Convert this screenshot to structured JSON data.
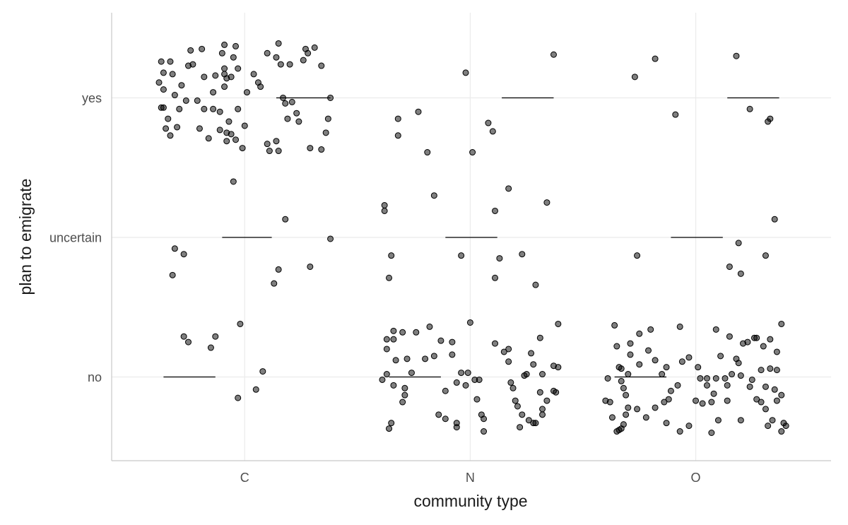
{
  "chart_data": {
    "type": "scatter",
    "x_label": "community type",
    "y_label": "plan to emigrate",
    "xlim": [
      0.41,
      3.6
    ],
    "ylim": [
      0.4,
      3.61
    ],
    "xticks": [
      {
        "value": 1,
        "label": "C"
      },
      {
        "value": 2,
        "label": "N"
      },
      {
        "value": 3,
        "label": "O"
      }
    ],
    "yticks": [
      {
        "value": 1,
        "label": "no"
      },
      {
        "value": 2,
        "label": "uncertain"
      },
      {
        "value": 3,
        "label": "yes"
      }
    ],
    "grid": true,
    "color": "#000000",
    "opacity": 0.5,
    "x": [
      0.63,
      0.67,
      0.64,
      0.62,
      0.64,
      0.63,
      0.64,
      0.66,
      0.65,
      0.67,
      0.7,
      0.68,
      0.69,
      0.71,
      0.72,
      0.74,
      0.75,
      0.76,
      0.77,
      0.79,
      0.8,
      0.81,
      0.82,
      0.84,
      0.82,
      0.86,
      0.87,
      0.89,
      0.9,
      0.91,
      0.91,
      0.92,
      0.93,
      0.94,
      0.95,
      0.96,
      0.97,
      0.97,
      0.99,
      1.0,
      1.01,
      1.04,
      1.06,
      1.07,
      1.1,
      1.14,
      1.15,
      1.16,
      1.17,
      1.18,
      1.2,
      1.21,
      1.23,
      1.24,
      1.26,
      1.27,
      1.28,
      1.31,
      1.34,
      1.36,
      1.29,
      1.34,
      1.14,
      1.15,
      1.1,
      1.11,
      1.37,
      1.38,
      1.19,
      0.91,
      0.91,
      0.92,
      0.86,
      0.89,
      0.94,
      0.92,
      0.96,
      0.95,
      1.18,
      1.38,
      0.69,
      0.73,
      0.68,
      1.15,
      1.13,
      1.29,
      0.73,
      0.75,
      0.87,
      0.85,
      0.98,
      1.08,
      0.97,
      1.05,
      1.98,
      2.37,
      1.68,
      1.77,
      1.68,
      1.81,
      2.01,
      2.08,
      2.1,
      1.62,
      1.62,
      1.84,
      2.17,
      2.11,
      2.34,
      1.65,
      1.64,
      1.96,
      2.13,
      2.23,
      2.11,
      2.29,
      1.66,
      1.66,
      1.7,
      1.76,
      1.82,
      1.87,
      1.92,
      2.0,
      1.63,
      1.63,
      1.67,
      1.72,
      1.8,
      1.84,
      1.92,
      2.11,
      2.15,
      2.17,
      2.27,
      2.31,
      2.39,
      2.17,
      2.28,
      2.24,
      2.32,
      2.37,
      1.61,
      1.63,
      1.66,
      1.71,
      1.71,
      1.7,
      1.74,
      1.89,
      1.94,
      1.96,
      1.99,
      1.98,
      2.02,
      2.04,
      2.03,
      2.05,
      2.06,
      2.06,
      1.89,
      1.94,
      1.94,
      1.65,
      1.64,
      2.18,
      2.19,
      2.21,
      2.23,
      2.26,
      2.28,
      2.29,
      2.32,
      2.32,
      2.34,
      2.31,
      2.37,
      2.38,
      2.39,
      2.22,
      2.2,
      2.25,
      1.86,
      2.73,
      2.82,
      2.91,
      3.18,
      3.24,
      3.33,
      3.32,
      3.35,
      3.19,
      3.15,
      3.2,
      3.31,
      2.74,
      2.64,
      2.65,
      2.66,
      2.67,
      2.71,
      2.71,
      2.75,
      2.75,
      2.79,
      2.8,
      2.82,
      2.87,
      2.93,
      2.94,
      2.97,
      3.01,
      3.09,
      3.11,
      3.15,
      3.18,
      3.19,
      3.21,
      3.23,
      3.26,
      3.27,
      3.3,
      3.33,
      3.36,
      3.38,
      3.33,
      3.36,
      3.29,
      3.16,
      3.2,
      3.09,
      3.05,
      3.02,
      2.92,
      2.89,
      3.0,
      3.03,
      3.07,
      3.08,
      3.13,
      3.24,
      3.25,
      3.31,
      3.35,
      3.38,
      3.36,
      3.31,
      3.29,
      3.27,
      3.34,
      3.39,
      3.4,
      3.38,
      3.32,
      3.2,
      3.1,
      3.07,
      2.97,
      2.93,
      2.87,
      2.82,
      2.78,
      2.74,
      2.7,
      2.69,
      2.68,
      2.67,
      2.66,
      2.65,
      2.63,
      2.62,
      2.6,
      2.69,
      2.67,
      2.68,
      2.61,
      2.7,
      2.88,
      2.86,
      2.85,
      3.14,
      3.05,
      3.14
    ],
    "values": [
      3.26,
      3.26,
      3.18,
      3.11,
      3.06,
      2.93,
      2.93,
      2.85,
      2.78,
      2.73,
      2.79,
      3.17,
      3.02,
      2.92,
      3.09,
      2.98,
      3.23,
      3.34,
      3.24,
      2.98,
      2.78,
      3.35,
      3.15,
      2.71,
      2.92,
      3.04,
      3.16,
      2.77,
      3.32,
      3.17,
      3.21,
      2.69,
      2.83,
      3.15,
      3.29,
      3.37,
      3.21,
      2.92,
      2.64,
      2.8,
      3.04,
      3.17,
      3.11,
      3.08,
      3.32,
      3.29,
      3.39,
      3.24,
      3.0,
      2.96,
      3.24,
      2.97,
      2.89,
      2.83,
      3.27,
      3.35,
      3.32,
      3.36,
      3.23,
      2.75,
      2.64,
      2.63,
      2.69,
      2.62,
      2.67,
      2.62,
      2.85,
      3.0,
      2.85,
      3.38,
      3.08,
      3.14,
      2.92,
      2.9,
      2.74,
      2.75,
      2.7,
      2.4,
      2.13,
      1.99,
      1.92,
      1.88,
      1.73,
      1.77,
      1.67,
      1.79,
      1.29,
      1.25,
      1.29,
      1.21,
      1.38,
      1.04,
      0.85,
      0.91,
      3.18,
      3.31,
      2.85,
      2.9,
      2.73,
      2.61,
      2.61,
      2.82,
      2.76,
      2.23,
      2.19,
      2.3,
      2.35,
      2.19,
      2.25,
      1.87,
      1.71,
      1.87,
      1.85,
      1.88,
      1.71,
      1.66,
      1.33,
      1.27,
      1.32,
      1.32,
      1.36,
      1.26,
      1.25,
      1.39,
      1.27,
      1.2,
      1.12,
      1.13,
      1.13,
      1.15,
      1.16,
      1.24,
      1.18,
      1.2,
      1.17,
      1.28,
      1.38,
      1.11,
      1.09,
      1.01,
      1.02,
      1.08,
      0.98,
      1.02,
      0.94,
      0.92,
      0.87,
      0.82,
      1.03,
      0.9,
      0.96,
      1.03,
      1.03,
      0.94,
      0.98,
      0.98,
      0.84,
      0.73,
      0.7,
      0.61,
      0.7,
      0.67,
      0.64,
      0.67,
      0.63,
      0.96,
      0.92,
      0.79,
      0.73,
      0.69,
      0.67,
      0.67,
      0.73,
      0.77,
      0.83,
      0.89,
      0.9,
      0.89,
      1.07,
      0.64,
      0.83,
      1.02,
      0.73,
      3.15,
      3.28,
      2.88,
      3.3,
      2.92,
      2.85,
      2.83,
      2.13,
      1.96,
      1.79,
      1.74,
      1.87,
      1.87,
      1.37,
      1.22,
      1.07,
      1.06,
      1.16,
      1.24,
      1.31,
      1.09,
      1.19,
      1.34,
      1.12,
      1.07,
      1.36,
      1.11,
      1.14,
      1.07,
      1.34,
      1.15,
      1.29,
      1.13,
      1.1,
      1.24,
      1.25,
      1.28,
      1.28,
      1.22,
      1.27,
      1.18,
      1.38,
      1.06,
      1.05,
      1.05,
      1.02,
      1.01,
      0.99,
      0.99,
      0.99,
      0.94,
      0.9,
      0.83,
      0.81,
      0.82,
      0.88,
      0.99,
      0.93,
      0.98,
      0.93,
      0.91,
      0.87,
      0.83,
      0.77,
      0.82,
      0.84,
      0.69,
      0.67,
      0.65,
      0.61,
      0.65,
      0.69,
      0.69,
      0.6,
      0.65,
      0.61,
      0.67,
      0.78,
      0.71,
      0.77,
      0.78,
      0.73,
      0.66,
      0.63,
      0.62,
      0.61,
      0.71,
      0.82,
      0.83,
      0.87,
      0.97,
      0.92,
      0.99,
      1.02,
      0.84,
      0.82,
      1.02,
      0.94,
      0.94,
      0.83
    ],
    "segments": {
      "color": "#000000",
      "x_start": [
        0.64,
        0.9,
        1.14,
        1.64,
        1.89,
        2.14,
        2.64,
        2.89,
        3.14
      ],
      "x_end": [
        0.87,
        1.12,
        1.38,
        1.87,
        2.12,
        2.37,
        2.87,
        3.12,
        3.37
      ],
      "y": [
        1,
        2,
        3,
        1,
        2,
        3,
        1,
        2,
        3
      ]
    }
  }
}
